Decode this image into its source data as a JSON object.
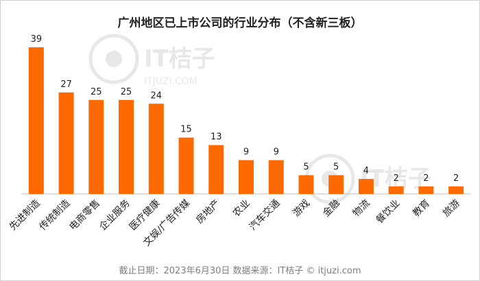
{
  "chart_data": {
    "type": "bar",
    "title": "广州地区已上市公司的行业分布（不含新三板）",
    "categories": [
      "先进制造",
      "传统制造",
      "电商零售",
      "企业服务",
      "医疗健康",
      "文娱/广告传媒",
      "房地产",
      "农业",
      "汽车交通",
      "游戏",
      "金融",
      "物流",
      "餐饮业",
      "教育",
      "旅游"
    ],
    "values": [
      39,
      27,
      25,
      25,
      24,
      15,
      13,
      9,
      9,
      5,
      5,
      4,
      2,
      2,
      2
    ],
    "ylim": [
      0,
      40
    ],
    "grid": false,
    "legend": "none",
    "bar_color": "#ff6a00"
  },
  "watermark": {
    "brand": "IT桔子",
    "url": "ITJUZI.COM"
  },
  "footer": "截止日期：2023年6月30日    数据来源：IT桔子 © itjuzi.com"
}
